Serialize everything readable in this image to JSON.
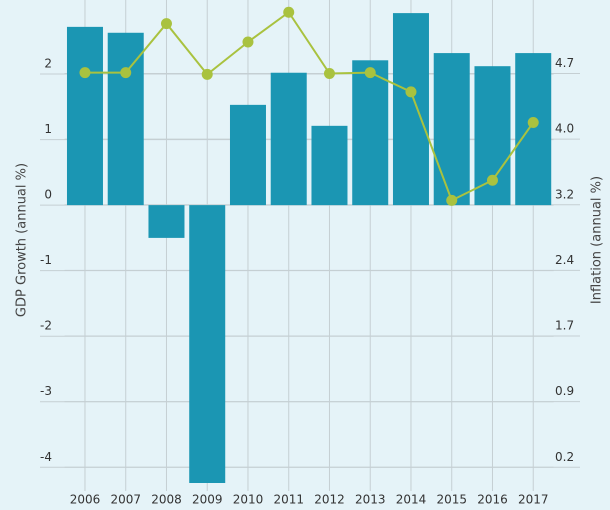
{
  "chart_data": {
    "type": "bar_line",
    "categories": [
      "2006",
      "2007",
      "2008",
      "2009",
      "2010",
      "2011",
      "2012",
      "2013",
      "2014",
      "2015",
      "2016",
      "2017"
    ],
    "series": [
      {
        "name": "GDP Growth (annual %)",
        "type": "bar",
        "color": "#1b96b3",
        "values": [
          2.72,
          2.63,
          -0.5,
          -4.24,
          1.53,
          2.02,
          1.21,
          2.21,
          2.93,
          2.32,
          2.12,
          2.32
        ]
      },
      {
        "name": "Inflation (annual %)",
        "type": "line",
        "axis": "y2",
        "color": "#a9c23f",
        "values": [
          4.71,
          4.71,
          5.27,
          4.69,
          5.06,
          5.4,
          4.7,
          4.71,
          4.49,
          3.25,
          3.48,
          4.14
        ]
      }
    ],
    "ylabel": "GDP Growth (annual %)",
    "y2label": "Inflation (annual %)",
    "ylim": [
      -4.24,
      3.13
    ],
    "yticks": [
      -4,
      -3,
      -2,
      -1,
      0,
      1,
      2
    ],
    "y2lim": [
      0.02,
      5.54
    ],
    "y2ticks": [
      0.2,
      {
        "value": 0.95,
        "label": "0.9"
      },
      1.7,
      {
        "value": 2.45,
        "label": "2.4"
      },
      3.2,
      {
        "value": 3.95,
        "label": "4.0"
      },
      4.7
    ],
    "grid": true
  }
}
